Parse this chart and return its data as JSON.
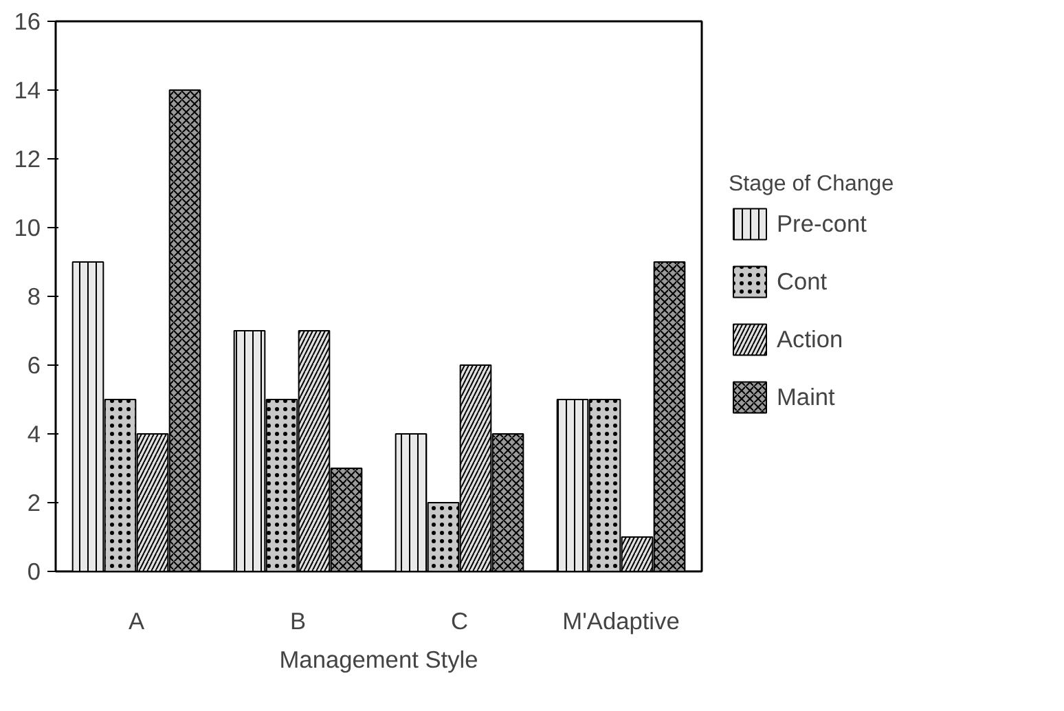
{
  "chart_data": {
    "type": "bar",
    "xlabel": "Management Style",
    "legend_title": "Stage of Change",
    "categories": [
      "A",
      "B",
      "C",
      "M'Adaptive"
    ],
    "series": [
      {
        "name": "Pre-cont",
        "color": "#e8e8e8",
        "values": [
          9,
          7,
          4,
          5
        ]
      },
      {
        "name": "Cont",
        "color": "#c8c8c8",
        "values": [
          5,
          5,
          2,
          5
        ]
      },
      {
        "name": "Action",
        "color": "#e0e0e0",
        "values": [
          4,
          7,
          6,
          1
        ]
      },
      {
        "name": "Maint",
        "color": "#9a9a9a",
        "values": [
          14,
          3,
          4,
          9
        ]
      }
    ],
    "ylim": [
      0,
      16
    ],
    "yticks": [
      0,
      2,
      4,
      6,
      8,
      10,
      12,
      14,
      16
    ],
    "grid": false,
    "legend": "right"
  }
}
